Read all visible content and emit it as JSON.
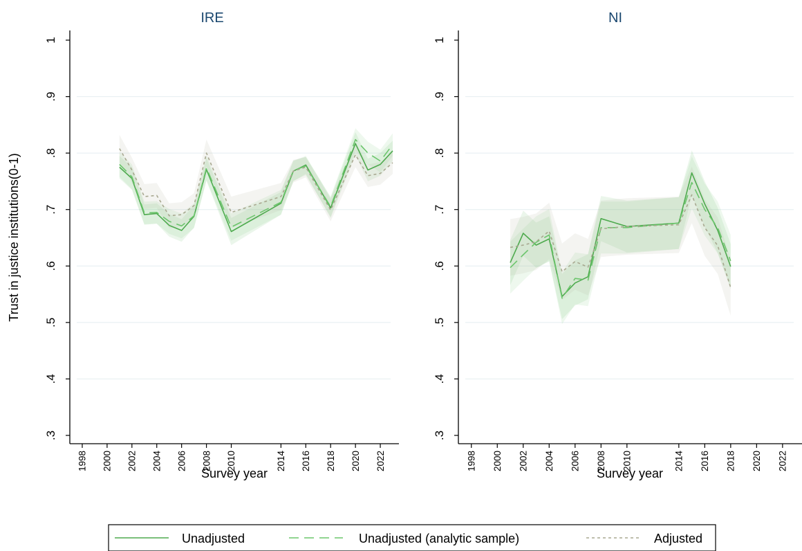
{
  "chart_data": {
    "type": "line",
    "ylabel": "Trust in justice institutions(0-1)",
    "ylim": [
      0.3,
      1.0
    ],
    "yticks": [
      0.3,
      0.4,
      0.5,
      0.6,
      0.7,
      0.8,
      0.9,
      1.0
    ],
    "ytick_labels": [
      ".3",
      ".4",
      ".5",
      ".6",
      ".7",
      ".8",
      ".9",
      "1"
    ],
    "xlim": [
      1997,
      2023.5
    ],
    "xticks": [
      1998,
      2000,
      2002,
      2004,
      2006,
      2008,
      2010,
      2014,
      2016,
      2018,
      2020,
      2022
    ],
    "grid": true,
    "legend": {
      "placement": "bottom",
      "entries": [
        {
          "label": "Unadjusted",
          "style": "solid"
        },
        {
          "label": "Unadjusted (analytic sample)",
          "style": "dashed"
        },
        {
          "label": "Adjusted",
          "style": "dotted"
        }
      ]
    },
    "colors": {
      "unadjusted": "#4eaa4e",
      "analytic": "#6cc56c",
      "adjusted": "#a8a890",
      "band_green": "#5cb85c",
      "band_grey": "#b8b8a8",
      "panel_title": "#1a476f",
      "grid": "#e4eef0"
    },
    "panels": [
      {
        "title": "IRE",
        "xlabel": "Survey year",
        "series": [
          {
            "style": "solid",
            "x": [
              2001,
              2002,
              2003,
              2004,
              2005,
              2006,
              2007,
              2008,
              2010,
              2014,
              2015,
              2016,
              2018,
              2020,
              2021,
              2022,
              2023
            ],
            "y": [
              0.775,
              0.755,
              0.691,
              0.693,
              0.672,
              0.663,
              0.688,
              0.771,
              0.661,
              0.711,
              0.768,
              0.779,
              0.703,
              0.817,
              0.77,
              0.78,
              0.804
            ],
            "lower": [
              0.755,
              0.735,
              0.673,
              0.675,
              0.652,
              0.643,
              0.668,
              0.751,
              0.637,
              0.691,
              0.75,
              0.763,
              0.685,
              0.797,
              0.75,
              0.76,
              0.786
            ],
            "upper": [
              0.795,
              0.775,
              0.709,
              0.711,
              0.692,
              0.683,
              0.708,
              0.791,
              0.685,
              0.731,
              0.786,
              0.795,
              0.721,
              0.837,
              0.79,
              0.8,
              0.822
            ]
          },
          {
            "style": "dashed",
            "x": [
              2001,
              2002,
              2003,
              2004,
              2005,
              2006,
              2007,
              2008,
              2010,
              2014,
              2015,
              2016,
              2018,
              2020,
              2021,
              2022,
              2023
            ],
            "y": [
              0.78,
              0.758,
              0.694,
              0.695,
              0.679,
              0.671,
              0.689,
              0.774,
              0.669,
              0.713,
              0.769,
              0.777,
              0.705,
              0.824,
              0.8,
              0.786,
              0.815
            ],
            "lower": [
              0.758,
              0.736,
              0.674,
              0.675,
              0.657,
              0.649,
              0.667,
              0.752,
              0.645,
              0.691,
              0.751,
              0.761,
              0.687,
              0.804,
              0.78,
              0.766,
              0.795
            ],
            "upper": [
              0.802,
              0.78,
              0.714,
              0.715,
              0.701,
              0.693,
              0.711,
              0.796,
              0.693,
              0.735,
              0.787,
              0.793,
              0.723,
              0.844,
              0.82,
              0.806,
              0.835
            ]
          },
          {
            "style": "dotted",
            "x": [
              2001,
              2002,
              2003,
              2004,
              2005,
              2006,
              2007,
              2008,
              2010,
              2014,
              2015,
              2016,
              2018,
              2020,
              2021,
              2022,
              2023
            ],
            "y": [
              0.808,
              0.77,
              0.723,
              0.725,
              0.689,
              0.691,
              0.707,
              0.8,
              0.695,
              0.723,
              0.768,
              0.775,
              0.699,
              0.797,
              0.76,
              0.764,
              0.783
            ],
            "lower": [
              0.784,
              0.748,
              0.701,
              0.703,
              0.667,
              0.669,
              0.685,
              0.776,
              0.667,
              0.699,
              0.748,
              0.757,
              0.679,
              0.775,
              0.74,
              0.744,
              0.763
            ],
            "upper": [
              0.832,
              0.792,
              0.745,
              0.747,
              0.711,
              0.713,
              0.729,
              0.824,
              0.723,
              0.747,
              0.788,
              0.793,
              0.719,
              0.819,
              0.78,
              0.784,
              0.803
            ]
          }
        ]
      },
      {
        "title": "NI",
        "xlabel": "Survey year",
        "series": [
          {
            "style": "solid",
            "x": [
              2001,
              2002,
              2003,
              2004,
              2005,
              2006,
              2007,
              2008,
              2010,
              2014,
              2015,
              2016,
              2017,
              2018
            ],
            "y": [
              0.606,
              0.658,
              0.637,
              0.648,
              0.546,
              0.57,
              0.581,
              0.684,
              0.67,
              0.676,
              0.765,
              0.71,
              0.663,
              0.599
            ],
            "lower": [
              0.566,
              0.618,
              0.597,
              0.608,
              0.506,
              0.53,
              0.541,
              0.644,
              0.624,
              0.63,
              0.725,
              0.67,
              0.623,
              0.559
            ],
            "upper": [
              0.646,
              0.698,
              0.677,
              0.688,
              0.586,
              0.61,
              0.621,
              0.724,
              0.716,
              0.722,
              0.805,
              0.75,
              0.703,
              0.639
            ]
          },
          {
            "style": "dashed",
            "x": [
              2001,
              2002,
              2003,
              2004,
              2005,
              2006,
              2007,
              2008,
              2010,
              2014,
              2015,
              2016,
              2017,
              2018
            ],
            "y": [
              0.597,
              0.62,
              0.642,
              0.655,
              0.543,
              0.578,
              0.575,
              0.668,
              0.668,
              0.676,
              0.748,
              0.7,
              0.668,
              0.609
            ],
            "lower": [
              0.551,
              0.574,
              0.596,
              0.609,
              0.497,
              0.532,
              0.529,
              0.622,
              0.622,
              0.63,
              0.702,
              0.654,
              0.622,
              0.563
            ],
            "upper": [
              0.643,
              0.666,
              0.688,
              0.701,
              0.589,
              0.624,
              0.621,
              0.714,
              0.714,
              0.722,
              0.794,
              0.746,
              0.714,
              0.655
            ]
          },
          {
            "style": "dotted",
            "x": [
              2001,
              2002,
              2003,
              2004,
              2005,
              2006,
              2007,
              2008,
              2010,
              2014,
              2015,
              2016,
              2017,
              2018
            ],
            "y": [
              0.633,
              0.637,
              0.643,
              0.662,
              0.59,
              0.608,
              0.598,
              0.666,
              0.67,
              0.673,
              0.726,
              0.668,
              0.636,
              0.562
            ],
            "lower": [
              0.583,
              0.587,
              0.593,
              0.612,
              0.54,
              0.558,
              0.548,
              0.616,
              0.62,
              0.623,
              0.676,
              0.618,
              0.586,
              0.512
            ],
            "upper": [
              0.683,
              0.687,
              0.693,
              0.712,
              0.64,
              0.658,
              0.648,
              0.716,
              0.72,
              0.723,
              0.776,
              0.718,
              0.686,
              0.612
            ]
          }
        ]
      }
    ]
  }
}
